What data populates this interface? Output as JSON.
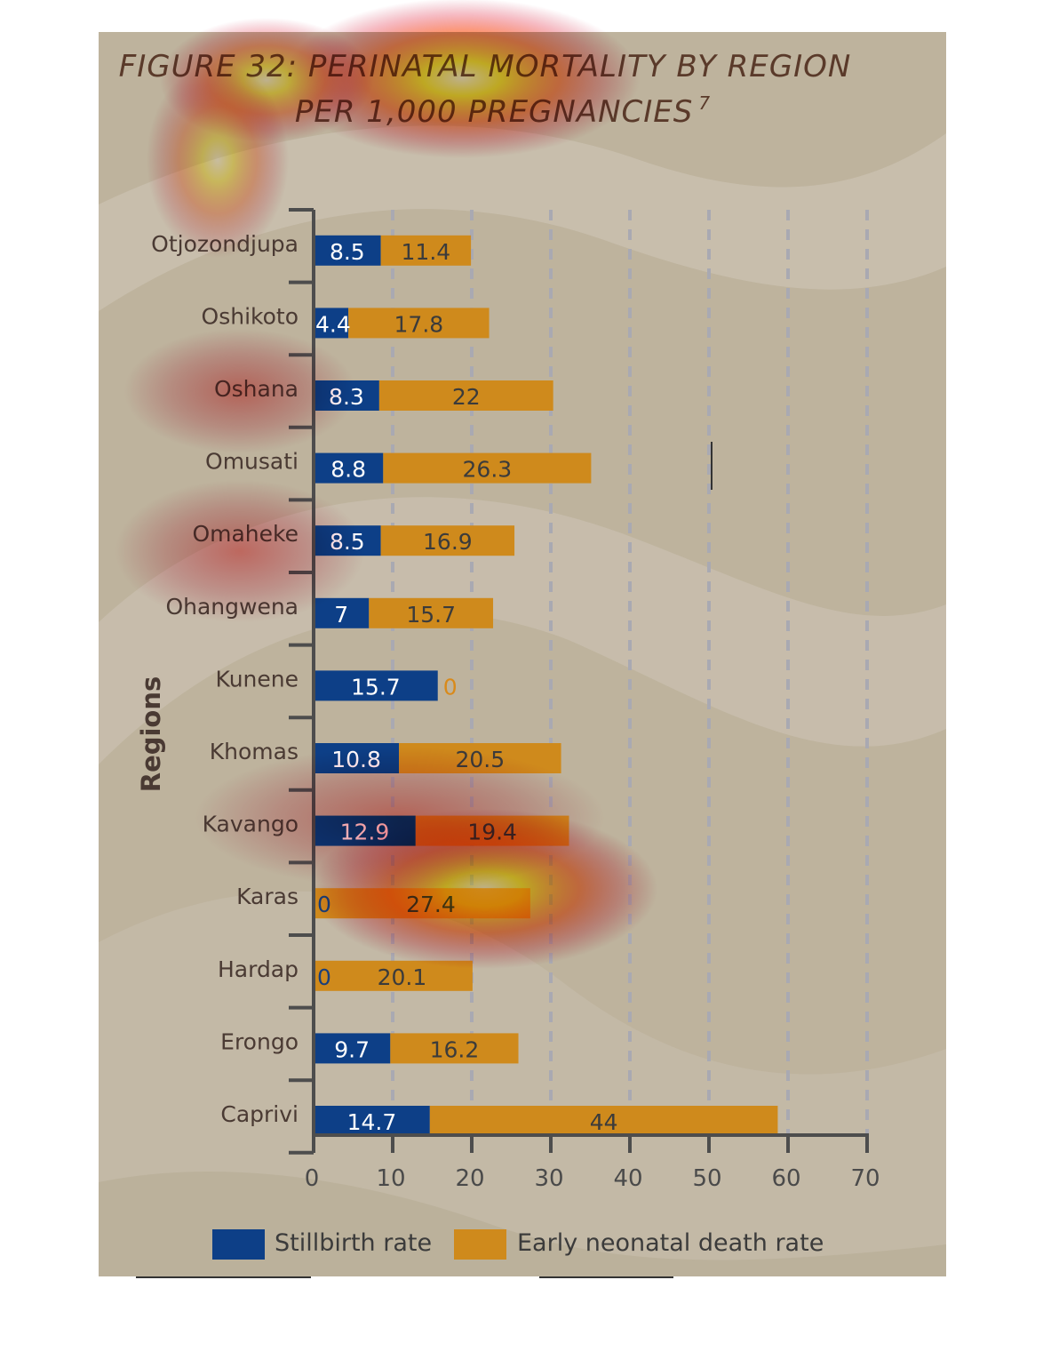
{
  "chart_data": {
    "type": "bar",
    "orientation": "horizontal",
    "stacked": true,
    "title_line1": "FIGURE 32: PERINATAL MORTALITY BY REGION",
    "title_line2": "PER 1,000 PREGNANCIES",
    "title_superscript": "7",
    "ylabel": "Regions",
    "xlim": [
      0,
      70
    ],
    "xticks": [
      "0",
      "10",
      "20",
      "30",
      "40",
      "50",
      "60",
      "70"
    ],
    "grid": "vertical dashed",
    "legend_position": "bottom",
    "categories": [
      "Otjozondjupa",
      "Oshikoto",
      "Oshana",
      "Omusati",
      "Omaheke",
      "Ohangwena",
      "Kunene",
      "Khomas",
      "Kavango",
      "Karas",
      "Hardap",
      "Erongo",
      "Caprivi"
    ],
    "series": [
      {
        "name": "Stillbirth rate",
        "color": "#0d3f87",
        "values": [
          8.5,
          4.4,
          8.3,
          8.8,
          8.5,
          7,
          15.7,
          10.8,
          12.9,
          0,
          0,
          9.7,
          14.7
        ],
        "labels": [
          "8.5",
          "4.4",
          "8.3",
          "8.8",
          "8.5",
          "7",
          "15.7",
          "10.8",
          "12.9",
          "0",
          "0",
          "9.7",
          "14.7"
        ]
      },
      {
        "name": "Early neonatal death rate",
        "color": "#cf8a1c",
        "values": [
          11.4,
          17.8,
          22,
          26.3,
          16.9,
          15.7,
          0,
          20.5,
          19.4,
          27.4,
          20.1,
          16.2,
          44
        ],
        "labels": [
          "11.4",
          "17.8",
          "22",
          "26.3",
          "16.9",
          "15.7",
          "0",
          "20.5",
          "19.4",
          "27.4",
          "20.1",
          "16.2",
          "44"
        ]
      }
    ]
  },
  "colors": {
    "panel_background": "#beb39d",
    "stillbirth": "#0d3f87",
    "early_neonatal": "#cf8a1c",
    "axis": "#4d4d4d",
    "grid": "#a9a9b2"
  }
}
